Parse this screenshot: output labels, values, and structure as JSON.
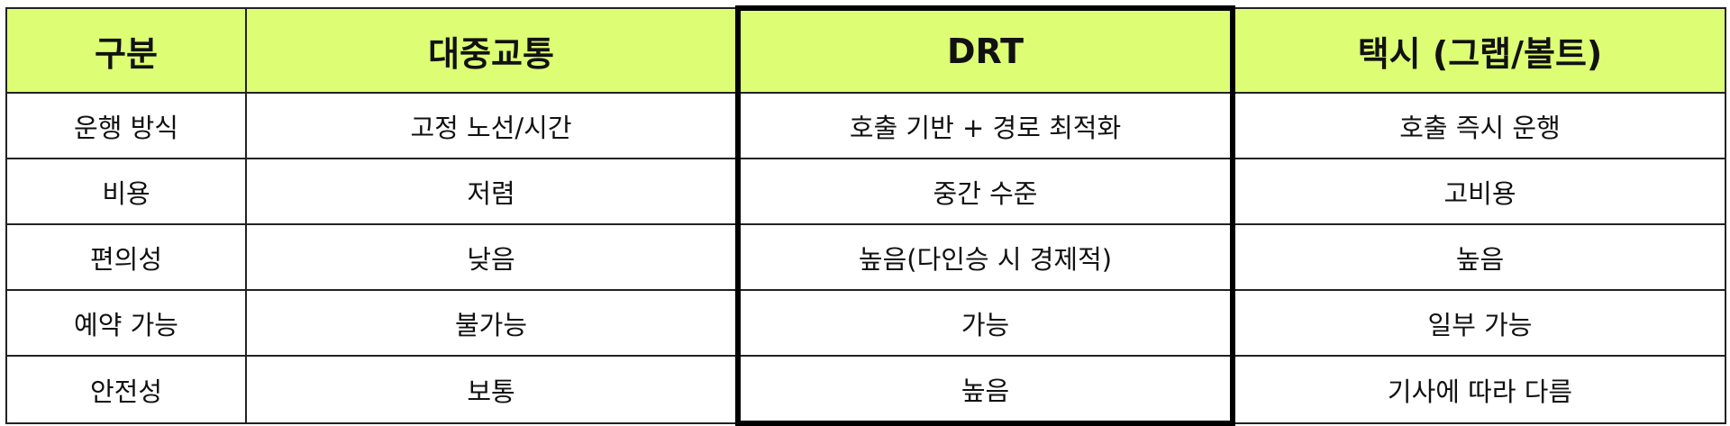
{
  "colors": {
    "header_bg": "#ddfe74",
    "border": "#222222",
    "highlight_border": "#000000"
  },
  "headers": [
    "구분",
    "대중교통",
    "DRT",
    "택시 (그랩/볼트)"
  ],
  "rows": [
    [
      "운행 방식",
      "고정 노선/시간",
      "호출 기반 + 경로 최적화",
      "호출 즉시 운행"
    ],
    [
      "비용",
      "저렴",
      "중간 수준",
      "고비용"
    ],
    [
      "편의성",
      "낮음",
      "높음(다인승 시 경제적)",
      "높음"
    ],
    [
      "예약 가능",
      "불가능",
      "가능",
      "일부 가능"
    ],
    [
      "안전성",
      "보통",
      "높음",
      "기사에 따라 다름"
    ]
  ]
}
